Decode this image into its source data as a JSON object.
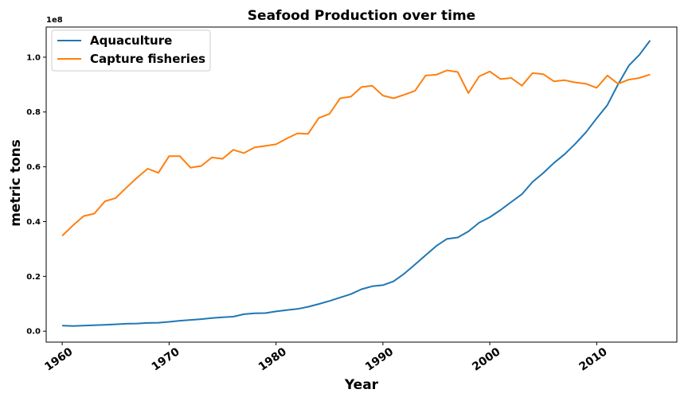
{
  "chart_data": {
    "type": "line",
    "title": "Seafood Production over time",
    "xlabel": "Year",
    "ylabel": "metric tons",
    "y_offset_label": "1e8",
    "xlim": [
      1958.5,
      2017.5
    ],
    "ylim": [
      -0.04,
      1.11
    ],
    "y_scale_factor": 100000000,
    "grid": false,
    "legend_placement": "top-left",
    "xticks": [
      1960,
      1970,
      1980,
      1990,
      2000,
      2010
    ],
    "xtick_labels": [
      "1960",
      "1970",
      "1980",
      "1990",
      "2000",
      "2010"
    ],
    "yticks": [
      0.0,
      0.2,
      0.4,
      0.6,
      0.8,
      1.0
    ],
    "ytick_labels": [
      "0.0",
      "0.2",
      "0.4",
      "0.6",
      "0.8",
      "1.0"
    ],
    "x": [
      1960,
      1961,
      1962,
      1963,
      1964,
      1965,
      1966,
      1967,
      1968,
      1969,
      1970,
      1971,
      1972,
      1973,
      1974,
      1975,
      1976,
      1977,
      1978,
      1979,
      1980,
      1981,
      1982,
      1983,
      1984,
      1985,
      1986,
      1987,
      1988,
      1989,
      1990,
      1991,
      1992,
      1993,
      1994,
      1995,
      1996,
      1997,
      1998,
      1999,
      2000,
      2001,
      2002,
      2003,
      2004,
      2005,
      2006,
      2007,
      2008,
      2009,
      2010,
      2011,
      2012,
      2013,
      2014,
      2015
    ],
    "series": [
      {
        "name": "Aquaculture",
        "color": "#1f77b4",
        "values": [
          0.02,
          0.019,
          0.02,
          0.022,
          0.023,
          0.025,
          0.027,
          0.028,
          0.03,
          0.031,
          0.034,
          0.038,
          0.041,
          0.044,
          0.048,
          0.051,
          0.053,
          0.062,
          0.065,
          0.066,
          0.072,
          0.077,
          0.081,
          0.089,
          0.099,
          0.11,
          0.123,
          0.135,
          0.153,
          0.164,
          0.168,
          0.182,
          0.21,
          0.243,
          0.277,
          0.311,
          0.337,
          0.342,
          0.364,
          0.396,
          0.416,
          0.442,
          0.471,
          0.5,
          0.545,
          0.577,
          0.614,
          0.646,
          0.684,
          0.726,
          0.777,
          0.825,
          0.901,
          0.969,
          1.009,
          1.061
        ]
      },
      {
        "name": "Capture fisheries",
        "color": "#ff7f0e",
        "values": [
          0.348,
          0.386,
          0.42,
          0.429,
          0.474,
          0.486,
          0.524,
          0.56,
          0.593,
          0.578,
          0.639,
          0.639,
          0.597,
          0.603,
          0.634,
          0.629,
          0.662,
          0.65,
          0.671,
          0.676,
          0.682,
          0.703,
          0.722,
          0.72,
          0.778,
          0.793,
          0.85,
          0.856,
          0.891,
          0.896,
          0.86,
          0.85,
          0.863,
          0.877,
          0.933,
          0.936,
          0.952,
          0.946,
          0.869,
          0.93,
          0.948,
          0.92,
          0.924,
          0.896,
          0.942,
          0.938,
          0.912,
          0.916,
          0.908,
          0.903,
          0.888,
          0.933,
          0.903,
          0.918,
          0.924,
          0.937
        ]
      }
    ]
  }
}
